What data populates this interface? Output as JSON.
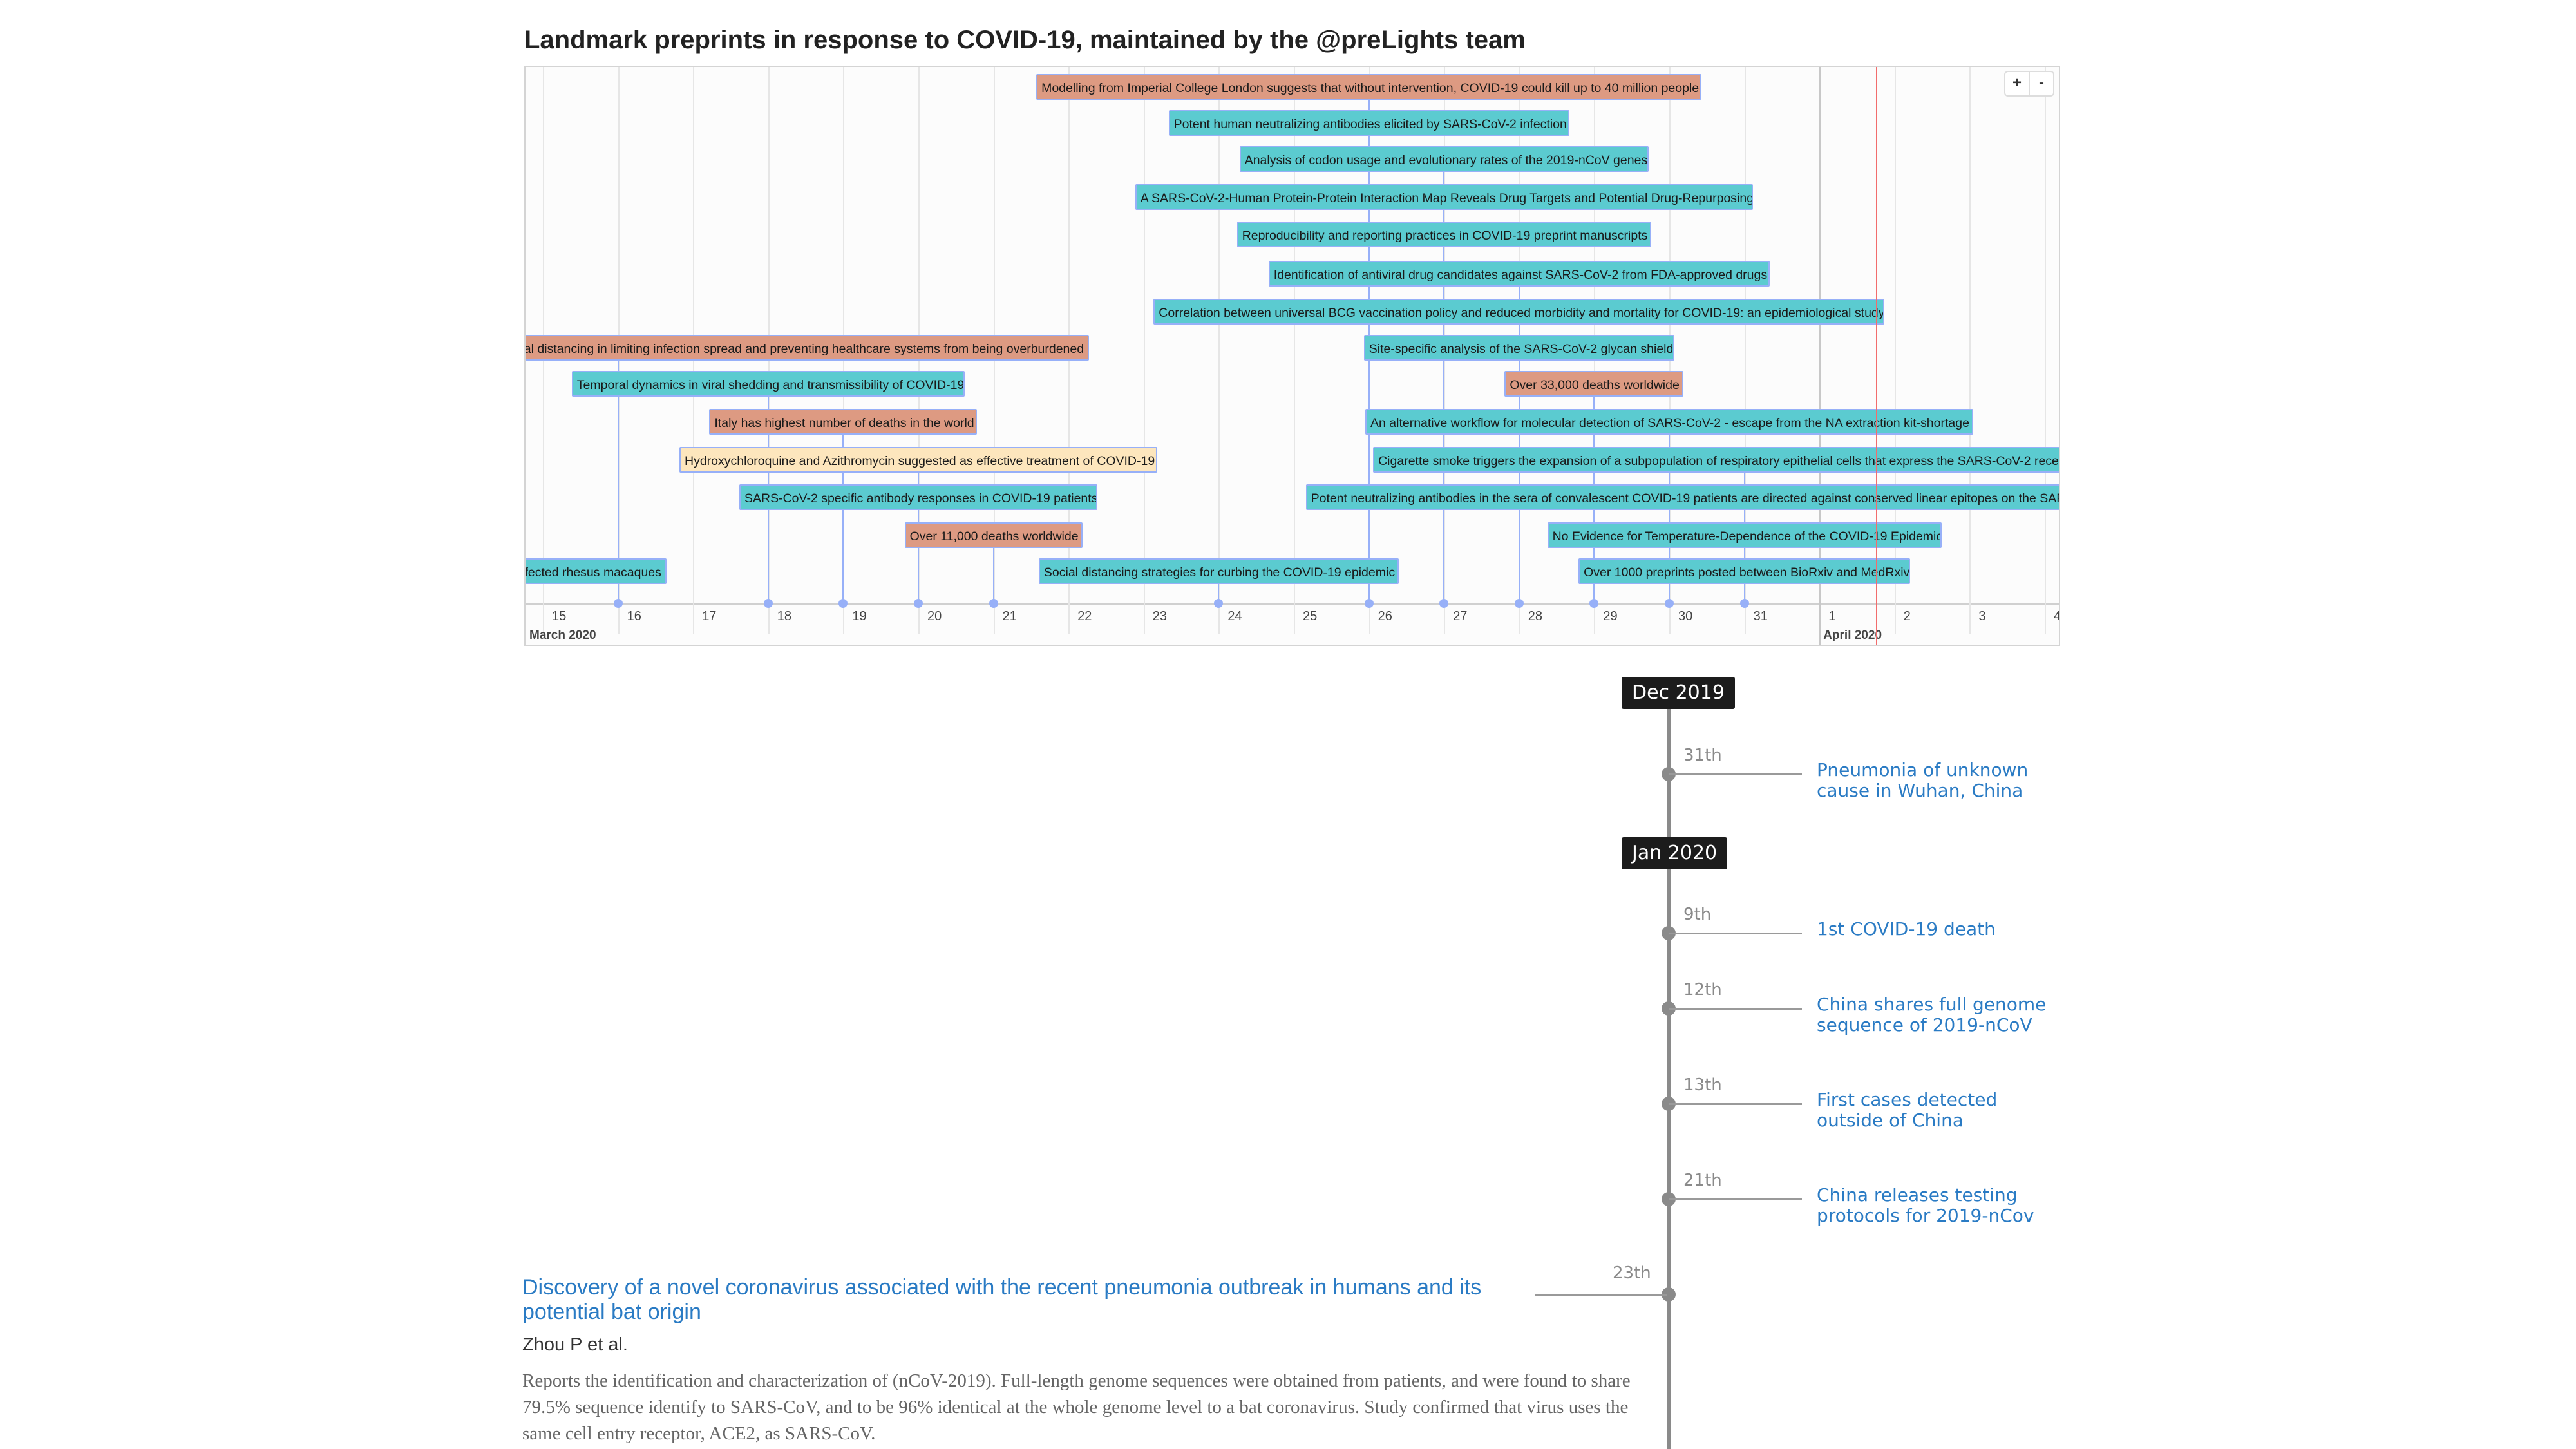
{
  "title": "Landmark preprints in response to COVID-19, maintained by the @preLights team",
  "colors": {
    "preprint": "#5bcbd0",
    "event": "#dd9a82",
    "highlight": "#fde6bd",
    "border": "#97b0f8",
    "now_line": "#f26d6d",
    "link": "#2a7bc4"
  },
  "zoom_controls": {
    "zoom_in": "+",
    "zoom_out": "-"
  },
  "timeline": {
    "axis_start": "2020-03-15",
    "now": "2020-04-01T18:00",
    "ticks": [
      "15",
      "16",
      "17",
      "18",
      "19",
      "20",
      "21",
      "22",
      "23",
      "24",
      "25",
      "26",
      "27",
      "28",
      "29",
      "30",
      "31",
      "1",
      "2",
      "3",
      "4"
    ],
    "months": [
      "March 2020",
      "April 2020"
    ],
    "items": [
      {
        "text": "Modelling from Imperial College London suggests that without intervention, COVID-19 could kill up to 40 million people",
        "date": "2020-03-26",
        "type": "event"
      },
      {
        "text": "Potent human neutralizing antibodies elicited by SARS-CoV-2 infection",
        "date": "2020-03-26",
        "type": "preprint"
      },
      {
        "text": "Analysis of codon usage and evolutionary rates of the 2019-nCoV genes",
        "date": "2020-03-27",
        "type": "preprint"
      },
      {
        "text": "A SARS-CoV-2-Human Protein-Protein Interaction Map Reveals Drug Targets and Potential Drug-Repurposing",
        "date": "2020-03-27",
        "type": "preprint"
      },
      {
        "text": "Reproducibility and reporting practices in COVID-19 preprint manuscripts",
        "date": "2020-03-27",
        "type": "preprint"
      },
      {
        "text": "Identification of antiviral drug candidates against SARS-CoV-2 from FDA-approved drugs",
        "date": "2020-03-28",
        "type": "preprint"
      },
      {
        "text": "Correlation between universal BCG vaccination policy and reduced morbidity and mortality for COVID-19: an epidemiological study",
        "date": "2020-03-28",
        "type": "preprint"
      },
      {
        "text": "al distancing in limiting infection spread and preventing healthcare systems from being overburdened",
        "date": "2020-03-16",
        "type": "event"
      },
      {
        "text": "Site-specific analysis of the SARS-CoV-2 glycan shield",
        "date": "2020-03-28",
        "type": "preprint"
      },
      {
        "text": "Temporal dynamics in viral shedding and transmissibility of COVID-19",
        "date": "2020-03-18",
        "type": "preprint"
      },
      {
        "text": "Over 33,000 deaths worldwide",
        "date": "2020-03-29",
        "type": "event"
      },
      {
        "text": "Italy has highest number of deaths in the world",
        "date": "2020-03-19",
        "type": "event"
      },
      {
        "text": "An alternative workflow for molecular detection of SARS-CoV-2 - escape from the NA extraction kit-shortage",
        "date": "2020-03-30",
        "type": "preprint"
      },
      {
        "text": "Hydroxychloroquine and Azithromycin suggested as effective treatment of COVID-19",
        "date": "2020-03-20",
        "type": "highlight"
      },
      {
        "text": "Cigarette smoke triggers the expansion of a subpopulation of respiratory epithelial cells that express the SARS-CoV-2 recep",
        "date": "2020-03-31",
        "type": "preprint"
      },
      {
        "text": "SARS-CoV-2 specific antibody responses in COVID-19 patients",
        "date": "2020-03-20",
        "type": "preprint"
      },
      {
        "text": "Potent neutralizing antibodies in the sera of convalescent COVID-19 patients are directed against conserved linear epitopes on the SARS",
        "date": "2020-03-31",
        "type": "preprint"
      },
      {
        "text": "Over 11,000 deaths worldwide",
        "date": "2020-03-21",
        "type": "event"
      },
      {
        "text": "No Evidence for Temperature-Dependence of the COVID-19 Epidemic",
        "date": "2020-03-31",
        "type": "preprint"
      },
      {
        "text": "fected rhesus macaques",
        "date": "2020-03-14",
        "type": "preprint"
      },
      {
        "text": "Social distancing strategies for curbing the COVID-19 epidemic",
        "date": "2020-03-24",
        "type": "preprint"
      },
      {
        "text": "Over 1000 preprints posted between BioRxiv and MedRxiv",
        "date": "2020-03-31",
        "type": "preprint"
      }
    ]
  },
  "vertical_timeline": {
    "months": [
      {
        "label": "Dec 2019"
      },
      {
        "label": "Jan 2020"
      }
    ],
    "events": [
      {
        "day": "31th",
        "title": "Pneumonia of unknown cause in Wuhan, China"
      },
      {
        "day": "9th",
        "title": "1st COVID-19 death"
      },
      {
        "day": "12th",
        "title": "China shares full genome sequence of 2019-nCoV"
      },
      {
        "day": "13th",
        "title": "First cases detected outside of China"
      },
      {
        "day": "21th",
        "title": "China releases testing protocols for 2019-nCov"
      }
    ],
    "paper": {
      "day": "23th",
      "title": "Discovery of a novel coronavirus associated with the recent pneumonia outbreak in humans and its potential bat origin",
      "authors": "Zhou P et al.",
      "abstract": "Reports the identification and characterization of (nCoV-2019). Full-length genome sequences were obtained from patients, and were found to share 79.5% sequence identify to SARS-CoV, and to be 96% identical at the whole genome level to a bat coronavirus. Study confirmed that virus uses the same cell entry receptor, ACE2, as SARS-CoV."
    }
  }
}
